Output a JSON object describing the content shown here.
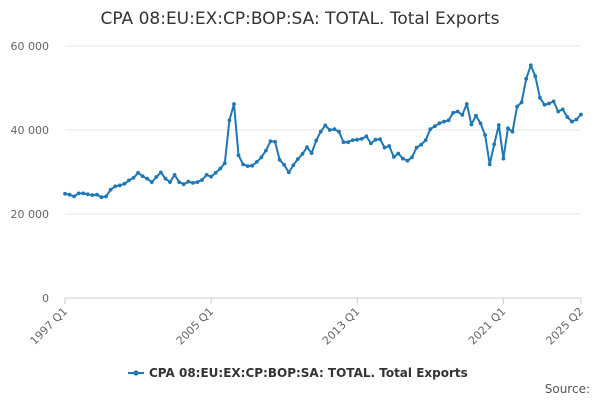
{
  "chart_data": {
    "type": "line",
    "title": "CPA 08:EU:EX:CP:BOP:SA: TOTAL. Total Exports",
    "xlabel": "",
    "ylabel": "",
    "x_start_quarter": "1997 Q1",
    "x_end_quarter": "2025 Q2",
    "x_tick_labels": [
      "1997 Q1",
      "2005 Q1",
      "2013 Q1",
      "2021 Q1",
      "2025 Q2"
    ],
    "y_tick_labels": [
      "0",
      "20 000",
      "40 000",
      "60 000"
    ],
    "ylim": [
      0,
      60000
    ],
    "grid": true,
    "legend_position": "bottom",
    "color": "#1f77b4",
    "series": [
      {
        "name": "CPA 08:EU:EX:CP:BOP:SA: TOTAL. Total Exports",
        "x": [
          "1997 Q1",
          "1997 Q2",
          "1997 Q3",
          "1997 Q4",
          "1998 Q1",
          "1998 Q2",
          "1998 Q3",
          "1998 Q4",
          "1999 Q1",
          "1999 Q2",
          "1999 Q3",
          "1999 Q4",
          "2000 Q1",
          "2000 Q2",
          "2000 Q3",
          "2000 Q4",
          "2001 Q1",
          "2001 Q2",
          "2001 Q3",
          "2001 Q4",
          "2002 Q1",
          "2002 Q2",
          "2002 Q3",
          "2002 Q4",
          "2003 Q1",
          "2003 Q2",
          "2003 Q3",
          "2003 Q4",
          "2004 Q1",
          "2004 Q2",
          "2004 Q3",
          "2004 Q4",
          "2005 Q1",
          "2005 Q2",
          "2005 Q3",
          "2005 Q4",
          "2006 Q1",
          "2006 Q2",
          "2006 Q3",
          "2006 Q4",
          "2007 Q1",
          "2007 Q2",
          "2007 Q3",
          "2007 Q4",
          "2008 Q1",
          "2008 Q2",
          "2008 Q3",
          "2008 Q4",
          "2009 Q1",
          "2009 Q2",
          "2009 Q3",
          "2009 Q4",
          "2010 Q1",
          "2010 Q2",
          "2010 Q3",
          "2010 Q4",
          "2011 Q1",
          "2011 Q2",
          "2011 Q3",
          "2011 Q4",
          "2012 Q1",
          "2012 Q2",
          "2012 Q3",
          "2012 Q4",
          "2013 Q1",
          "2013 Q2",
          "2013 Q3",
          "2013 Q4",
          "2014 Q1",
          "2014 Q2",
          "2014 Q3",
          "2014 Q4",
          "2015 Q1",
          "2015 Q2",
          "2015 Q3",
          "2015 Q4",
          "2016 Q1",
          "2016 Q2",
          "2016 Q3",
          "2016 Q4",
          "2017 Q1",
          "2017 Q2",
          "2017 Q3",
          "2017 Q4",
          "2018 Q1",
          "2018 Q2",
          "2018 Q3",
          "2018 Q4",
          "2019 Q1",
          "2019 Q2",
          "2019 Q3",
          "2019 Q4",
          "2020 Q1",
          "2020 Q2",
          "2020 Q3",
          "2020 Q4",
          "2021 Q1",
          "2021 Q2",
          "2021 Q3",
          "2021 Q4",
          "2022 Q1",
          "2022 Q2",
          "2022 Q3",
          "2022 Q4",
          "2023 Q1",
          "2023 Q2",
          "2023 Q3",
          "2023 Q4",
          "2024 Q1",
          "2024 Q2",
          "2024 Q3",
          "2024 Q4",
          "2025 Q1",
          "2025 Q2"
        ],
        "values": [
          24800,
          24600,
          24200,
          24900,
          24900,
          24700,
          24500,
          24600,
          24000,
          24200,
          25800,
          26600,
          26800,
          27200,
          28000,
          28600,
          29800,
          29000,
          28400,
          27600,
          28800,
          29900,
          28400,
          27600,
          29300,
          27600,
          27100,
          27700,
          27400,
          27600,
          28100,
          29300,
          28900,
          29800,
          30800,
          32100,
          42300,
          46200,
          34000,
          31800,
          31400,
          31500,
          32400,
          33500,
          35100,
          37300,
          37200,
          32900,
          31700,
          29900,
          31600,
          33100,
          34300,
          35900,
          34500,
          37500,
          39600,
          41100,
          40000,
          40200,
          39600,
          37100,
          37100,
          37600,
          37700,
          37900,
          38500,
          36800,
          37700,
          37800,
          35800,
          36200,
          33600,
          34400,
          33200,
          32700,
          33500,
          35800,
          36500,
          37600,
          40200,
          40900,
          41600,
          42000,
          42300,
          44100,
          44400,
          43600,
          46200,
          41300,
          43400,
          41600,
          38800,
          31800,
          36600,
          41200,
          33200,
          40400,
          39600,
          45600,
          46600,
          52200,
          55400,
          52800,
          47700,
          46000,
          46300,
          46800,
          44400,
          44900,
          43100,
          42000,
          42500,
          43700
        ]
      }
    ],
    "credit": "Source:"
  }
}
